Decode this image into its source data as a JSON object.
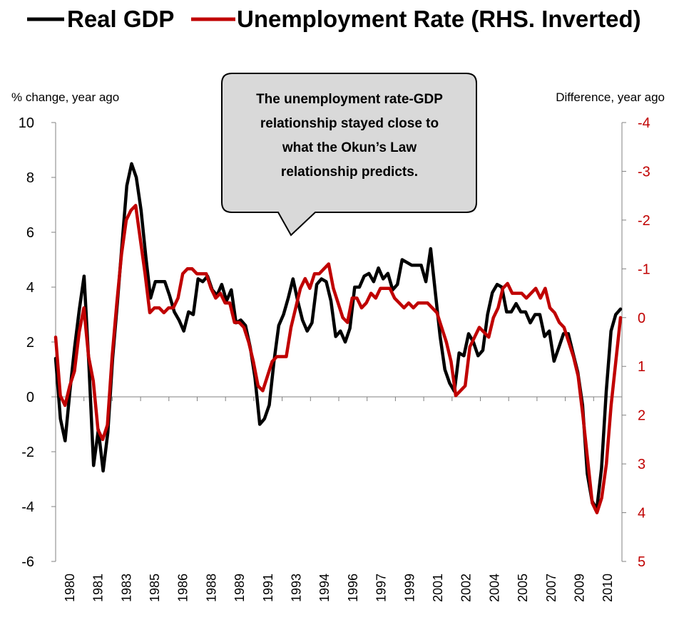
{
  "chart_data": {
    "type": "line",
    "legend": {
      "placement": "top",
      "entries": [
        {
          "label": "Real GDP",
          "color": "#000000"
        },
        {
          "label": "Unemployment Rate (RHS. Inverted)",
          "color": "#c00000"
        }
      ]
    },
    "ylabel_left": "% change, year ago",
    "ylabel_right": "Difference, year ago",
    "ylim_left": [
      -6,
      10
    ],
    "ylim_right": [
      5,
      -4
    ],
    "y_ticks_left": [
      "10",
      "8",
      "6",
      "4",
      "2",
      "0",
      "-2",
      "-4",
      "-6"
    ],
    "y_ticks_right": [
      "-4",
      "-3",
      "-2",
      "-1",
      "0",
      "1",
      "2",
      "3",
      "4",
      "5"
    ],
    "x_tick_labels": [
      "1980",
      "1981",
      "1983",
      "1985",
      "1986",
      "1988",
      "1989",
      "1991",
      "1993",
      "1994",
      "1996",
      "1997",
      "1999",
      "2001",
      "2002",
      "2004",
      "2005",
      "2007",
      "2009",
      "2010"
    ],
    "grid": false,
    "callout": "The unemployment rate-GDP relationship stayed close to what the Okun’s Law relationship predicts.",
    "series": [
      {
        "name": "Real GDP",
        "axis": "left",
        "color": "#000000",
        "values": [
          1.4,
          -0.8,
          -1.6,
          0.2,
          1.8,
          3.2,
          4.4,
          1.2,
          -2.5,
          -1.2,
          -2.7,
          -1.3,
          1.4,
          3.4,
          5.6,
          7.7,
          8.5,
          8.0,
          6.8,
          5.1,
          3.6,
          4.2,
          4.2,
          4.2,
          3.7,
          3.1,
          2.8,
          2.4,
          3.1,
          3.0,
          4.3,
          4.2,
          4.4,
          3.9,
          3.7,
          4.1,
          3.5,
          3.9,
          2.7,
          2.8,
          2.6,
          1.8,
          0.7,
          -1.0,
          -0.8,
          -0.3,
          1.3,
          2.6,
          3.0,
          3.6,
          4.3,
          3.5,
          2.8,
          2.4,
          2.7,
          4.1,
          4.3,
          4.2,
          3.5,
          2.2,
          2.4,
          2.0,
          2.5,
          4.0,
          4.0,
          4.4,
          4.5,
          4.2,
          4.7,
          4.3,
          4.5,
          3.9,
          4.1,
          5.0,
          4.9,
          4.8,
          4.8,
          4.8,
          4.2,
          5.4,
          3.8,
          2.2,
          1.0,
          0.5,
          0.2,
          1.6,
          1.5,
          2.3,
          2.0,
          1.5,
          1.7,
          3.0,
          3.8,
          4.1,
          4.0,
          3.1,
          3.1,
          3.4,
          3.1,
          3.1,
          2.7,
          3.0,
          3.0,
          2.2,
          2.4,
          1.3,
          1.8,
          2.3,
          2.3,
          1.6,
          0.9,
          -0.3,
          -2.8,
          -3.8,
          -4.1,
          -2.6,
          0.2,
          2.4,
          3.0,
          3.2
        ]
      },
      {
        "name": "Unemployment Rate (RHS. Inverted)",
        "axis": "right",
        "color": "#c00000",
        "values": [
          0.4,
          1.6,
          1.8,
          1.4,
          1.1,
          0.3,
          -0.2,
          0.8,
          1.3,
          2.3,
          2.5,
          2.2,
          0.8,
          -0.3,
          -1.3,
          -2.0,
          -2.2,
          -2.3,
          -1.6,
          -0.9,
          -0.1,
          -0.2,
          -0.2,
          -0.1,
          -0.2,
          -0.2,
          -0.4,
          -0.9,
          -1.0,
          -1.0,
          -0.9,
          -0.9,
          -0.9,
          -0.6,
          -0.4,
          -0.5,
          -0.3,
          -0.3,
          0.1,
          0.1,
          0.2,
          0.5,
          0.9,
          1.4,
          1.5,
          1.2,
          0.9,
          0.8,
          0.8,
          0.8,
          0.2,
          -0.2,
          -0.6,
          -0.8,
          -0.6,
          -0.9,
          -0.9,
          -1.0,
          -1.1,
          -0.6,
          -0.3,
          0.0,
          0.1,
          -0.4,
          -0.4,
          -0.2,
          -0.3,
          -0.5,
          -0.4,
          -0.6,
          -0.6,
          -0.6,
          -0.4,
          -0.3,
          -0.2,
          -0.3,
          -0.2,
          -0.3,
          -0.3,
          -0.3,
          -0.2,
          -0.1,
          0.2,
          0.5,
          0.9,
          1.6,
          1.5,
          1.4,
          0.6,
          0.4,
          0.2,
          0.3,
          0.4,
          0.0,
          -0.2,
          -0.6,
          -0.7,
          -0.5,
          -0.5,
          -0.5,
          -0.4,
          -0.5,
          -0.6,
          -0.4,
          -0.6,
          -0.2,
          -0.1,
          0.1,
          0.2,
          0.5,
          0.8,
          1.2,
          2.0,
          2.9,
          3.8,
          4.0,
          3.7,
          3.0,
          1.8,
          0.9,
          0.0
        ]
      }
    ]
  }
}
